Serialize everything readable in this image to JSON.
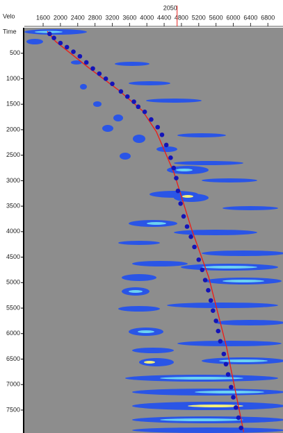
{
  "chart_data": {
    "type": "scatter",
    "x_label": "Velo",
    "y_label": "Time",
    "cursor_label": "2050",
    "cursor_x": 4700,
    "xlim": [
      1165,
      7150
    ],
    "ylim": [
      0,
      7950
    ],
    "y_inverted": true,
    "xticks": [
      1600,
      2000,
      2400,
      2800,
      3200,
      3600,
      4000,
      4400,
      4800,
      5200,
      5600,
      6000,
      6400,
      6800
    ],
    "yticks": [
      500,
      1000,
      1500,
      2000,
      2500,
      3000,
      3500,
      4000,
      4500,
      5000,
      5500,
      6000,
      6500,
      7000,
      7500
    ],
    "series": [
      {
        "type": "line",
        "color": "#e8201c",
        "x": [
          1696,
          1890,
          2700,
          3340,
          3900,
          4220,
          4630,
          5030,
          5430,
          5840,
          6240
        ],
        "values": [
          70,
          270,
          815,
          1220,
          1630,
          2040,
          2850,
          3940,
          4890,
          6250,
          7930
        ]
      },
      {
        "type": "scatter",
        "color": "#1414b8",
        "x": [
          1750,
          1850,
          2000,
          2150,
          2300,
          2450,
          2600,
          2750,
          2900,
          3050,
          3200,
          3400,
          3550,
          3700,
          3800,
          3950,
          4100,
          4250,
          4350,
          4450,
          4550,
          4620,
          4680,
          4720,
          4780,
          4850,
          4930,
          5020,
          5100,
          5200,
          5280,
          5350,
          5420,
          5480,
          5530,
          5600,
          5650,
          5700,
          5780,
          5830,
          5880,
          5950,
          6000,
          6060,
          6120,
          6180
        ],
        "values": [
          120,
          200,
          300,
          380,
          470,
          560,
          680,
          800,
          900,
          1000,
          1100,
          1250,
          1350,
          1450,
          1550,
          1650,
          1800,
          1950,
          2100,
          2300,
          2550,
          2750,
          2950,
          3200,
          3450,
          3700,
          3900,
          4100,
          4300,
          4550,
          4750,
          4950,
          5150,
          5350,
          5550,
          5750,
          5950,
          6150,
          6400,
          6600,
          6800,
          7050,
          7250,
          7450,
          7650,
          7850
        ]
      }
    ]
  }
}
